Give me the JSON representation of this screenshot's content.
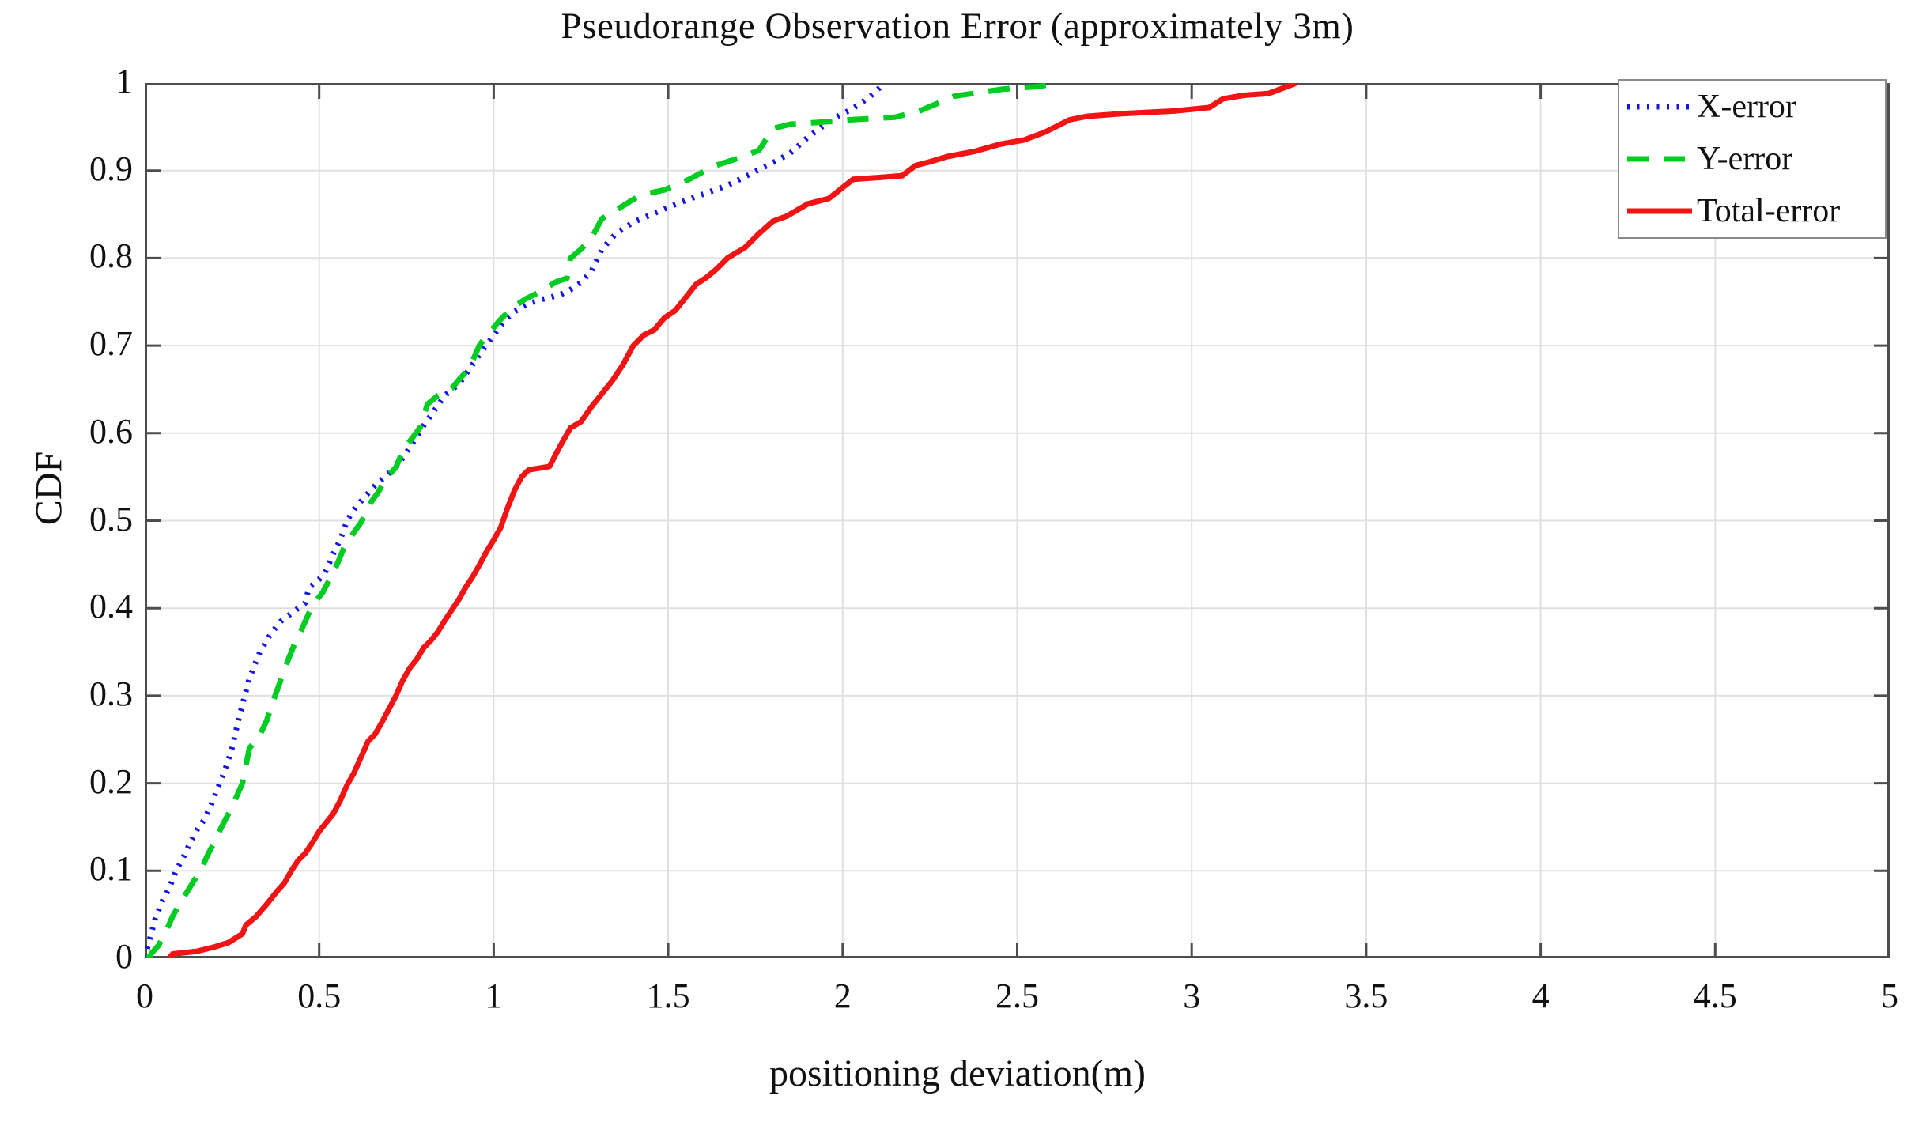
{
  "title": "Pseudorange Observation Error (approximately 3m)",
  "axes": {
    "x": {
      "label": "positioning deviation(m)"
    },
    "y": {
      "label": "CDF"
    }
  },
  "legend": {
    "position": "top-right",
    "entries": [
      {
        "label": "X-error",
        "color": "#1414e6",
        "style": "dotted"
      },
      {
        "label": "Y-error",
        "color": "#00cc22",
        "style": "dashed"
      },
      {
        "label": "Total-error",
        "color": "#f01414",
        "style": "solid"
      }
    ]
  },
  "colors": {
    "frame": "#4d4d4d",
    "grid": "#e0e0e0",
    "background": "#ffffff",
    "text": "#111111"
  },
  "chart_data": {
    "type": "line",
    "title": "Pseudorange Observation Error (approximately 3m)",
    "xlabel": "positioning deviation(m)",
    "ylabel": "CDF",
    "xlim": [
      0,
      5
    ],
    "ylim": [
      0,
      1
    ],
    "grid": true,
    "legend_position": "top-right",
    "x_ticks": {
      "values": [
        0,
        0.5,
        1,
        1.5,
        2,
        2.5,
        3,
        3.5,
        4,
        4.5,
        5
      ],
      "labels": [
        "0",
        "0.5",
        "1",
        "1.5",
        "2",
        "2.5",
        "3",
        "3.5",
        "4",
        "4.5",
        "5"
      ]
    },
    "y_ticks": {
      "values": [
        0,
        0.1,
        0.2,
        0.3,
        0.4,
        0.5,
        0.6,
        0.7,
        0.8,
        0.9,
        1
      ],
      "labels": [
        "0",
        "0.1",
        "0.2",
        "0.3",
        "0.4",
        "0.5",
        "0.6",
        "0.7",
        "0.8",
        "0.9",
        "1"
      ]
    },
    "series": [
      {
        "name": "X-error",
        "color": "#1414e6",
        "line_style": "dotted",
        "points": [
          [
            0,
            0
          ],
          [
            0.01,
            0.015
          ],
          [
            0.02,
            0.03
          ],
          [
            0.03,
            0.045
          ],
          [
            0.05,
            0.065
          ],
          [
            0.07,
            0.08
          ],
          [
            0.09,
            0.1
          ],
          [
            0.11,
            0.115
          ],
          [
            0.13,
            0.132
          ],
          [
            0.15,
            0.147
          ],
          [
            0.17,
            0.158
          ],
          [
            0.19,
            0.175
          ],
          [
            0.21,
            0.195
          ],
          [
            0.23,
            0.215
          ],
          [
            0.25,
            0.24
          ],
          [
            0.27,
            0.275
          ],
          [
            0.3,
            0.32
          ],
          [
            0.33,
            0.35
          ],
          [
            0.36,
            0.37
          ],
          [
            0.39,
            0.385
          ],
          [
            0.43,
            0.397
          ],
          [
            0.46,
            0.406
          ],
          [
            0.47,
            0.423
          ],
          [
            0.5,
            0.433
          ],
          [
            0.52,
            0.443
          ],
          [
            0.54,
            0.462
          ],
          [
            0.56,
            0.478
          ],
          [
            0.58,
            0.5
          ],
          [
            0.6,
            0.513
          ],
          [
            0.63,
            0.527
          ],
          [
            0.66,
            0.54
          ],
          [
            0.69,
            0.551
          ],
          [
            0.72,
            0.561
          ],
          [
            0.74,
            0.572
          ],
          [
            0.77,
            0.59
          ],
          [
            0.8,
            0.609
          ],
          [
            0.83,
            0.626
          ],
          [
            0.86,
            0.643
          ],
          [
            0.9,
            0.656
          ],
          [
            0.93,
            0.673
          ],
          [
            0.96,
            0.69
          ],
          [
            1.0,
            0.712
          ],
          [
            1.03,
            0.728
          ],
          [
            1.06,
            0.739
          ],
          [
            1.1,
            0.748
          ],
          [
            1.14,
            0.753
          ],
          [
            1.19,
            0.758
          ],
          [
            1.22,
            0.764
          ],
          [
            1.25,
            0.772
          ],
          [
            1.28,
            0.785
          ],
          [
            1.31,
            0.81
          ],
          [
            1.35,
            0.828
          ],
          [
            1.4,
            0.841
          ],
          [
            1.47,
            0.853
          ],
          [
            1.53,
            0.863
          ],
          [
            1.6,
            0.873
          ],
          [
            1.67,
            0.883
          ],
          [
            1.74,
            0.897
          ],
          [
            1.81,
            0.911
          ],
          [
            1.85,
            0.92
          ],
          [
            1.9,
            0.938
          ],
          [
            1.94,
            0.95
          ],
          [
            1.99,
            0.963
          ],
          [
            2.03,
            0.971
          ],
          [
            2.08,
            0.985
          ],
          [
            2.12,
            1.0
          ]
        ]
      },
      {
        "name": "Y-error",
        "color": "#00cc22",
        "line_style": "dashed",
        "points": [
          [
            0.01,
            0
          ],
          [
            0.02,
            0.006
          ],
          [
            0.04,
            0.015
          ],
          [
            0.06,
            0.03
          ],
          [
            0.08,
            0.048
          ],
          [
            0.1,
            0.062
          ],
          [
            0.12,
            0.075
          ],
          [
            0.14,
            0.088
          ],
          [
            0.16,
            0.1
          ],
          [
            0.18,
            0.118
          ],
          [
            0.2,
            0.133
          ],
          [
            0.22,
            0.15
          ],
          [
            0.24,
            0.165
          ],
          [
            0.26,
            0.182
          ],
          [
            0.28,
            0.2
          ],
          [
            0.3,
            0.24
          ],
          [
            0.33,
            0.255
          ],
          [
            0.35,
            0.272
          ],
          [
            0.37,
            0.296
          ],
          [
            0.39,
            0.318
          ],
          [
            0.41,
            0.34
          ],
          [
            0.43,
            0.36
          ],
          [
            0.45,
            0.376
          ],
          [
            0.47,
            0.394
          ],
          [
            0.49,
            0.408
          ],
          [
            0.51,
            0.418
          ],
          [
            0.53,
            0.433
          ],
          [
            0.55,
            0.449
          ],
          [
            0.57,
            0.468
          ],
          [
            0.6,
            0.487
          ],
          [
            0.62,
            0.498
          ],
          [
            0.65,
            0.522
          ],
          [
            0.67,
            0.533
          ],
          [
            0.69,
            0.548
          ],
          [
            0.72,
            0.561
          ],
          [
            0.74,
            0.58
          ],
          [
            0.76,
            0.591
          ],
          [
            0.79,
            0.607
          ],
          [
            0.81,
            0.633
          ],
          [
            0.84,
            0.643
          ],
          [
            0.88,
            0.651
          ],
          [
            0.9,
            0.661
          ],
          [
            0.93,
            0.674
          ],
          [
            0.96,
            0.701
          ],
          [
            0.99,
            0.716
          ],
          [
            1.02,
            0.73
          ],
          [
            1.05,
            0.742
          ],
          [
            1.09,
            0.753
          ],
          [
            1.13,
            0.761
          ],
          [
            1.18,
            0.773
          ],
          [
            1.21,
            0.777
          ],
          [
            1.22,
            0.8
          ],
          [
            1.25,
            0.81
          ],
          [
            1.28,
            0.823
          ],
          [
            1.31,
            0.845
          ],
          [
            1.38,
            0.862
          ],
          [
            1.42,
            0.872
          ],
          [
            1.49,
            0.878
          ],
          [
            1.56,
            0.89
          ],
          [
            1.63,
            0.905
          ],
          [
            1.7,
            0.914
          ],
          [
            1.76,
            0.923
          ],
          [
            1.8,
            0.948
          ],
          [
            1.85,
            0.953
          ],
          [
            1.93,
            0.955
          ],
          [
            2.02,
            0.958
          ],
          [
            2.15,
            0.961
          ],
          [
            2.22,
            0.968
          ],
          [
            2.32,
            0.985
          ],
          [
            2.46,
            0.993
          ],
          [
            2.56,
            0.996
          ],
          [
            2.62,
            1.0
          ]
        ]
      },
      {
        "name": "Total-error",
        "color": "#f01414",
        "line_style": "solid",
        "points": [
          [
            0.07,
            0
          ],
          [
            0.08,
            0.005
          ],
          [
            0.15,
            0.008
          ],
          [
            0.2,
            0.013
          ],
          [
            0.24,
            0.018
          ],
          [
            0.28,
            0.028
          ],
          [
            0.29,
            0.038
          ],
          [
            0.32,
            0.048
          ],
          [
            0.35,
            0.062
          ],
          [
            0.38,
            0.077
          ],
          [
            0.4,
            0.086
          ],
          [
            0.42,
            0.1
          ],
          [
            0.44,
            0.112
          ],
          [
            0.46,
            0.12
          ],
          [
            0.48,
            0.132
          ],
          [
            0.5,
            0.145
          ],
          [
            0.52,
            0.155
          ],
          [
            0.54,
            0.165
          ],
          [
            0.56,
            0.18
          ],
          [
            0.58,
            0.198
          ],
          [
            0.6,
            0.212
          ],
          [
            0.62,
            0.23
          ],
          [
            0.64,
            0.248
          ],
          [
            0.66,
            0.256
          ],
          [
            0.68,
            0.27
          ],
          [
            0.7,
            0.285
          ],
          [
            0.72,
            0.3
          ],
          [
            0.74,
            0.318
          ],
          [
            0.76,
            0.332
          ],
          [
            0.78,
            0.342
          ],
          [
            0.8,
            0.355
          ],
          [
            0.82,
            0.363
          ],
          [
            0.84,
            0.373
          ],
          [
            0.86,
            0.386
          ],
          [
            0.88,
            0.398
          ],
          [
            0.9,
            0.41
          ],
          [
            0.92,
            0.424
          ],
          [
            0.94,
            0.436
          ],
          [
            0.96,
            0.45
          ],
          [
            0.98,
            0.465
          ],
          [
            1.0,
            0.478
          ],
          [
            1.02,
            0.492
          ],
          [
            1.04,
            0.515
          ],
          [
            1.06,
            0.535
          ],
          [
            1.08,
            0.55
          ],
          [
            1.1,
            0.558
          ],
          [
            1.16,
            0.562
          ],
          [
            1.19,
            0.585
          ],
          [
            1.22,
            0.606
          ],
          [
            1.25,
            0.613
          ],
          [
            1.28,
            0.63
          ],
          [
            1.31,
            0.645
          ],
          [
            1.34,
            0.66
          ],
          [
            1.37,
            0.678
          ],
          [
            1.4,
            0.7
          ],
          [
            1.43,
            0.712
          ],
          [
            1.46,
            0.718
          ],
          [
            1.49,
            0.732
          ],
          [
            1.52,
            0.74
          ],
          [
            1.55,
            0.755
          ],
          [
            1.58,
            0.77
          ],
          [
            1.61,
            0.778
          ],
          [
            1.64,
            0.788
          ],
          [
            1.67,
            0.8
          ],
          [
            1.72,
            0.812
          ],
          [
            1.76,
            0.828
          ],
          [
            1.8,
            0.842
          ],
          [
            1.84,
            0.848
          ],
          [
            1.9,
            0.862
          ],
          [
            1.96,
            0.868
          ],
          [
            2.03,
            0.89
          ],
          [
            2.1,
            0.892
          ],
          [
            2.17,
            0.894
          ],
          [
            2.21,
            0.906
          ],
          [
            2.25,
            0.91
          ],
          [
            2.3,
            0.916
          ],
          [
            2.38,
            0.922
          ],
          [
            2.45,
            0.93
          ],
          [
            2.52,
            0.935
          ],
          [
            2.58,
            0.944
          ],
          [
            2.65,
            0.958
          ],
          [
            2.7,
            0.962
          ],
          [
            2.8,
            0.965
          ],
          [
            2.95,
            0.968
          ],
          [
            3.05,
            0.972
          ],
          [
            3.09,
            0.982
          ],
          [
            3.15,
            0.986
          ],
          [
            3.22,
            0.988
          ],
          [
            3.3,
            1.0
          ]
        ]
      }
    ]
  }
}
